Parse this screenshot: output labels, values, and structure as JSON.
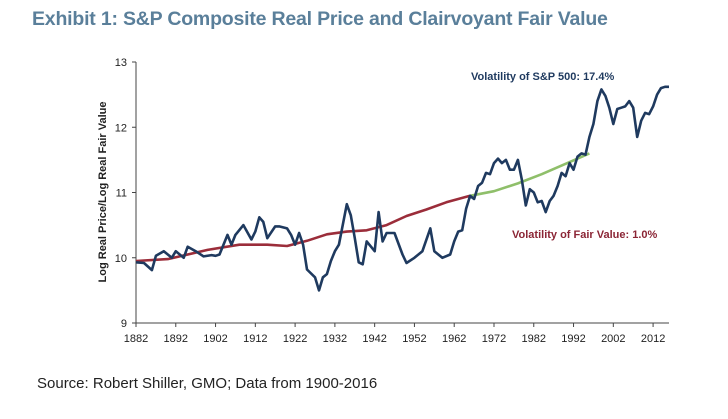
{
  "page": {
    "title": "Exhibit 1: S&P Composite Real Price and Clairvoyant Fair Value",
    "source": "Source: Robert Shiller, GMO; Data from 1900-2016"
  },
  "chart_data": {
    "type": "line",
    "title": "Exhibit 1: S&P Composite Real Price and Clairvoyant Fair Value",
    "xlabel": "",
    "ylabel": "Log Real Price/Log Real Fair Value",
    "xlim": [
      1882,
      2016
    ],
    "ylim": [
      9,
      13
    ],
    "grid": false,
    "x_ticks": [
      "1882",
      "1892",
      "1902",
      "1912",
      "1922",
      "1932",
      "1942",
      "1952",
      "1962",
      "1972",
      "1982",
      "1992",
      "2002",
      "2012"
    ],
    "y_ticks": [
      "9",
      "10",
      "11",
      "12",
      "13"
    ],
    "annotations": [
      {
        "text": "Volatility of S&P 500:  17.4%",
        "color": "#1f3a5f"
      },
      {
        "text": "Volatility of Fair Value:  1.0%",
        "color": "#8b2535"
      }
    ],
    "colors": {
      "price": "#1f3a5f",
      "fair_value": "#9b2d3a",
      "fair_value_estimated": "#8fbf6a"
    },
    "series": [
      {
        "name": "S&P Composite Real Price (log)",
        "x": [
          1882,
          1884,
          1886,
          1887,
          1889,
          1891,
          1892,
          1894,
          1895,
          1897,
          1899,
          1901,
          1902,
          1903,
          1905,
          1906,
          1907,
          1909,
          1911,
          1912,
          1913,
          1914,
          1915,
          1917,
          1918,
          1920,
          1921,
          1922,
          1923,
          1924,
          1925,
          1927,
          1928,
          1929,
          1930,
          1931,
          1932,
          1933,
          1935,
          1936,
          1937,
          1938,
          1939,
          1940,
          1942,
          1943,
          1944,
          1945,
          1947,
          1949,
          1950,
          1952,
          1954,
          1956,
          1957,
          1959,
          1961,
          1962,
          1963,
          1964,
          1965,
          1966,
          1967,
          1968,
          1969,
          1970,
          1971,
          1972,
          1973,
          1974,
          1975,
          1976,
          1977,
          1978,
          1979,
          1980,
          1981,
          1982,
          1983,
          1984,
          1985,
          1986,
          1987,
          1988,
          1989,
          1990,
          1991,
          1992,
          1993,
          1994,
          1995,
          1996,
          1997,
          1998,
          1999,
          2000,
          2001,
          2002,
          2003,
          2004,
          2005,
          2006,
          2007,
          2008,
          2009,
          2010,
          2011,
          2012,
          2013,
          2014,
          2015,
          2016
        ],
        "values": [
          9.93,
          9.92,
          9.81,
          10.03,
          10.1,
          10.0,
          10.1,
          10.0,
          10.17,
          10.1,
          10.02,
          10.04,
          10.03,
          10.05,
          10.35,
          10.2,
          10.35,
          10.5,
          10.28,
          10.4,
          10.62,
          10.55,
          10.3,
          10.48,
          10.48,
          10.45,
          10.35,
          10.2,
          10.38,
          10.2,
          9.82,
          9.7,
          9.5,
          9.7,
          9.75,
          9.95,
          10.1,
          10.2,
          10.82,
          10.65,
          10.3,
          9.93,
          9.9,
          10.25,
          10.1,
          10.7,
          10.25,
          10.38,
          10.38,
          10.05,
          9.92,
          10.0,
          10.1,
          10.45,
          10.1,
          10.0,
          10.05,
          10.25,
          10.4,
          10.42,
          10.75,
          10.95,
          10.9,
          11.1,
          11.15,
          11.3,
          11.28,
          11.45,
          11.52,
          11.45,
          11.5,
          11.35,
          11.35,
          11.5,
          11.2,
          10.8,
          11.05,
          11.0,
          10.85,
          10.87,
          10.7,
          10.87,
          10.95,
          11.1,
          11.3,
          11.25,
          11.45,
          11.35,
          11.55,
          11.6,
          11.58,
          11.85,
          12.05,
          12.4,
          12.58,
          12.48,
          12.3,
          12.05,
          12.28,
          12.3,
          12.32,
          12.4,
          12.3,
          11.85,
          12.1,
          12.22,
          12.2,
          12.32,
          12.5,
          12.6,
          12.62,
          12.62
        ]
      },
      {
        "name": "Clairvoyant Fair Value (log)",
        "x": [
          1882,
          1890,
          1900,
          1908,
          1915,
          1920,
          1925,
          1930,
          1935,
          1940,
          1945,
          1950,
          1955,
          1960,
          1966
        ],
        "values": [
          9.95,
          9.98,
          10.12,
          10.2,
          10.2,
          10.18,
          10.26,
          10.36,
          10.4,
          10.42,
          10.5,
          10.64,
          10.74,
          10.85,
          10.95
        ]
      },
      {
        "name": "Clairvoyant Fair Value (estimated, green)",
        "x": [
          1966,
          1972,
          1978,
          1984,
          1990,
          1996
        ],
        "values": [
          10.95,
          11.02,
          11.14,
          11.28,
          11.44,
          11.6
        ]
      }
    ]
  }
}
